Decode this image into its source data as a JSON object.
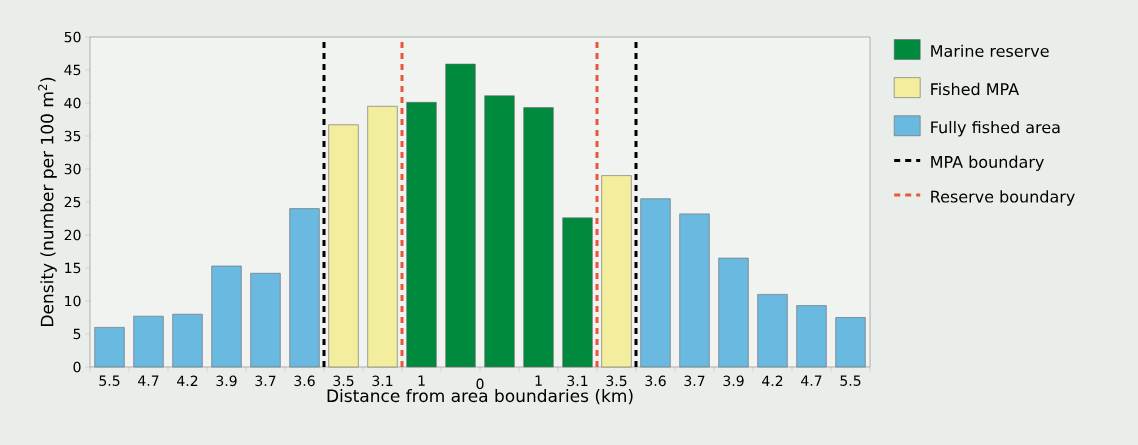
{
  "chart_data": {
    "type": "bar",
    "xlabel": "Distance from area boundaries (km)",
    "ylabel": "Density (number per 100 m$^{2}$)",
    "categories": [
      "5.5",
      "4.7",
      "4.2",
      "3.9",
      "3.7",
      "3.6",
      "3.5",
      "3.1",
      "1",
      null,
      null,
      "1",
      "3.1",
      "3.5",
      "3.6",
      "3.7",
      "3.9",
      "4.2",
      "4.7",
      "5.5"
    ],
    "series": [
      {
        "name": "Marine reserve",
        "color": "#008a3e",
        "values": [
          null,
          null,
          null,
          null,
          null,
          null,
          null,
          null,
          40.1,
          45.9,
          41.1,
          39.3,
          22.6,
          null,
          null,
          null,
          null,
          null,
          null,
          null
        ]
      },
      {
        "name": "Fished MPA",
        "color": "#f2ee9e",
        "values": [
          null,
          null,
          null,
          null,
          null,
          null,
          36.7,
          39.5,
          null,
          null,
          null,
          null,
          null,
          29,
          null,
          null,
          null,
          null,
          null,
          null
        ]
      },
      {
        "name": "Fully fished area",
        "color": "#6ab9e0",
        "values": [
          6,
          7.7,
          8,
          15.3,
          14.2,
          24,
          null,
          null,
          null,
          null,
          null,
          null,
          null,
          null,
          25.5,
          23.2,
          16.5,
          11,
          9.3,
          7.5
        ]
      }
    ],
    "ref_lines": [
      {
        "axis": "x",
        "label": "MPA boundary",
        "color": "#000000",
        "line_style": "dashed"
      },
      {
        "axis": "x",
        "label": "Reserve boundary",
        "color": "#e8583a",
        "line_style": "dashed"
      }
    ],
    "annotations": [
      "0"
    ],
    "ylim": [
      0,
      50
    ],
    "yticks": [
      0,
      5,
      10,
      15,
      20,
      25,
      30,
      35,
      40,
      45,
      50
    ],
    "legend": "right",
    "grid": false
  }
}
